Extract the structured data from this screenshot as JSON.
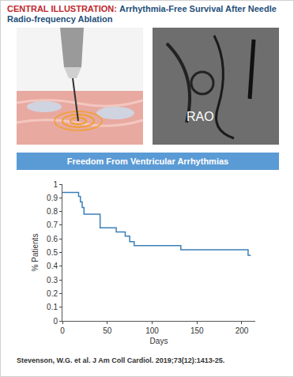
{
  "header": {
    "label": "CENTRAL ILLUSTRATION:",
    "title": "Arrhythmia-Free Survival After Needle Radio-frequency Ablation"
  },
  "image_label": "RAO",
  "chart_data": {
    "type": "line",
    "title": "Freedom From Ventricular Arrhythmias",
    "x_label": "Days",
    "y_label": "% Patients",
    "x": [
      0,
      18,
      20,
      22,
      24,
      42,
      60,
      70,
      75,
      80,
      132,
      207,
      210
    ],
    "values": [
      0.94,
      0.91,
      0.87,
      0.83,
      0.78,
      0.68,
      0.65,
      0.62,
      0.58,
      0.55,
      0.52,
      0.48,
      0.48
    ],
    "color": "#3b7fb8",
    "line_style": "step",
    "xlim": [
      0,
      215
    ],
    "xticks": [
      0,
      50,
      100,
      150,
      200
    ],
    "ylim": [
      0,
      1
    ],
    "yticks": [
      0,
      0.1,
      0.2,
      0.3,
      0.4,
      0.5,
      0.6,
      0.7,
      0.8,
      0.9,
      1
    ],
    "grid": false
  },
  "footer": "Stevenson, W.G. et al. J Am Coll Cardiol. 2019;73(12):1413-25."
}
